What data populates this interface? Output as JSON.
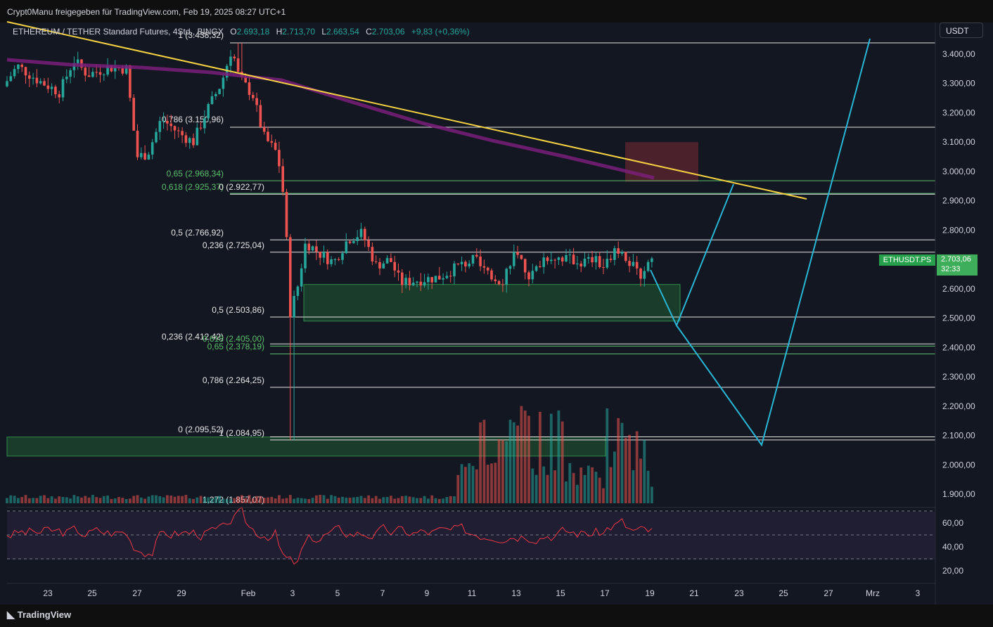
{
  "header": {
    "share_text": "Crypt0Manu freigegeben für TradingView.com, Feb 19, 2025 08:27 UTC+1",
    "symbol": "ETHEREUM / TETHER Standard Futures, 4Std., BINGX",
    "open_label": "O",
    "open": "2.693,18",
    "high_label": "H",
    "high": "2.713,70",
    "low_label": "L",
    "low": "2.663,54",
    "close_label": "C",
    "close": "2.703,06",
    "change": "+9,83 (+0,36%)"
  },
  "currency_button": "USDT",
  "price_tag": {
    "symbol": "ETHUSDT.PS",
    "price": "2.703,06",
    "countdown": "32:33"
  },
  "footer": {
    "brand": "TradingView"
  },
  "colors": {
    "background": "#131722",
    "up": "#26a69a",
    "down": "#ef5350",
    "trendline": "#f5d142",
    "ema": "#7b1f7a",
    "projection": "#29b6d6",
    "fib_white": "#e6e6e6",
    "fib_green": "#5bbf6a",
    "zone_green": "#1f5c32",
    "zone_red": "#7a2a35",
    "rsi": "#f23645"
  },
  "chart_data": {
    "type": "candlestick",
    "instrument": "ETHEREUM / TETHER Standard Futures",
    "interval": "4Std.",
    "y_axis": {
      "ticks": [
        "3.400,00",
        "3.300,00",
        "3.200,00",
        "3.100,00",
        "3.000,00",
        "2.900,00",
        "2.800,00",
        "2.700,00",
        "2.600,00",
        "2.500,00",
        "2.400,00",
        "2.300,00",
        "2.200,00",
        "2.100,00",
        "2.000,00",
        "1.900,00"
      ],
      "range": [
        1850,
        3470
      ]
    },
    "x_axis": {
      "ticks": [
        "23",
        "25",
        "27",
        "29",
        "Feb",
        "3",
        "5",
        "7",
        "9",
        "11",
        "13",
        "15",
        "17",
        "19",
        "21",
        "23",
        "25",
        "27",
        "Mrz",
        "3"
      ]
    },
    "fib_levels": [
      {
        "label": "1 (3.438,32)",
        "price": 3438.32,
        "color": "white"
      },
      {
        "label": "0,786 (3.150,96)",
        "price": 3150.96,
        "color": "white"
      },
      {
        "label": "0,65 (2.968,34)",
        "price": 2968.34,
        "color": "green"
      },
      {
        "label": "0,618 (2.925,37)",
        "price": 2925.37,
        "color": "green"
      },
      {
        "label": "0 (2.922,77)",
        "price": 2922.77,
        "color": "white"
      },
      {
        "label": "0,5 (2.766,92)",
        "price": 2766.92,
        "color": "white"
      },
      {
        "label": "0,236 (2.725,04)",
        "price": 2725.04,
        "color": "white"
      },
      {
        "label": "0,5 (2.503,86)",
        "price": 2503.86,
        "color": "white"
      },
      {
        "label": "0,236 (2.412,42)",
        "price": 2412.42,
        "color": "white"
      },
      {
        "label": "0,618 (2.405,00)",
        "price": 2405.0,
        "color": "green"
      },
      {
        "label": "0,65 (2.378,19)",
        "price": 2378.19,
        "color": "green"
      },
      {
        "label": "0,786 (2.264,25)",
        "price": 2264.25,
        "color": "white"
      },
      {
        "label": "0 (2.095,52)",
        "price": 2095.52,
        "color": "white"
      },
      {
        "label": "1 (2.084,95)",
        "price": 2084.95,
        "color": "white"
      },
      {
        "label": "1,272 (1.857,07)",
        "price": 1857.07,
        "color": "white"
      }
    ],
    "rsi": {
      "ticks": [
        "60,00",
        "40,00",
        "20,00"
      ],
      "range": [
        12,
        72
      ]
    },
    "current_price": 2703.06,
    "grid": false,
    "legend": "top-left"
  }
}
